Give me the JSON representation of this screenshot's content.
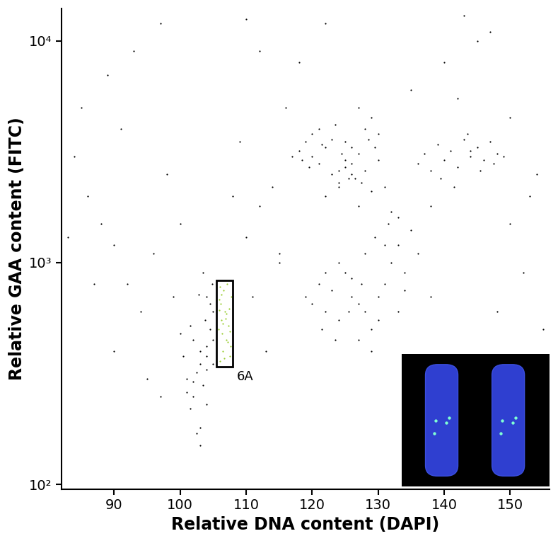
{
  "chart_data": {
    "type": "scatter",
    "x_label": "Relative DNA content (DAPI)",
    "y_label": "Relative GAA content (FITC)",
    "log": "y",
    "xlim": [
      82,
      156
    ],
    "ylim": [
      95,
      14000
    ],
    "xticks": [
      90,
      100,
      110,
      120,
      130,
      140,
      150
    ],
    "yticks": [
      {
        "value": 100,
        "label": "10²"
      },
      {
        "value": 1000,
        "label": "10³"
      },
      {
        "value": 10000,
        "label": "10⁴"
      }
    ],
    "gate": {
      "label": "6A",
      "x": [
        105.5,
        108
      ],
      "y": [
        340,
        830
      ]
    },
    "series": [
      {
        "color": "#000000",
        "marker": "point",
        "x": [
          101,
          102,
          103,
          104,
          104.5,
          105,
          103.5,
          102.5,
          101.5,
          100.5,
          104,
          104.8,
          103,
          102,
          104,
          103.8,
          101,
          103,
          105,
          102.5,
          104.5,
          103.5,
          100,
          102,
          104,
          102.8,
          103,
          101.5,
          105,
          104
        ],
        "y": [
          300,
          250,
          350,
          420,
          500,
          600,
          280,
          320,
          220,
          380,
          700,
          800,
          180,
          450,
          330,
          550,
          260,
          400,
          350,
          170,
          650,
          900,
          480,
          290,
          230,
          720,
          150,
          520,
          450,
          380
        ]
      },
      {
        "color": "#000000",
        "marker": "point",
        "x": [
          118,
          119,
          120,
          121,
          122,
          123,
          124,
          125,
          126,
          127,
          128,
          129,
          130,
          131,
          117,
          119.5,
          121.5,
          123.5,
          125.5,
          127.5,
          129.5,
          122,
          124,
          126,
          128,
          120,
          125,
          127,
          130,
          124.5,
          126.5,
          128.5,
          118.5,
          121,
          123,
          125,
          127,
          129,
          126,
          124
        ],
        "y": [
          3200,
          3500,
          3000,
          2800,
          3300,
          3600,
          2600,
          2900,
          2500,
          3100,
          4000,
          4500,
          3800,
          2200,
          3000,
          2700,
          3400,
          4200,
          2400,
          2300,
          3300,
          2000,
          2200,
          2800,
          2600,
          3800,
          3500,
          5000,
          2900,
          3100,
          2400,
          3600,
          2900,
          4000,
          2500,
          2700,
          1800,
          2100,
          3300,
          2300
        ]
      },
      {
        "color": "#000000",
        "marker": "point",
        "x": [
          136,
          137,
          138,
          139,
          140,
          141,
          142,
          143,
          144,
          145,
          146,
          147,
          148,
          149,
          139.5,
          141.5,
          143.5,
          145.5,
          147.5,
          144
        ],
        "y": [
          2800,
          3100,
          2600,
          3400,
          2900,
          3200,
          2700,
          3600,
          3000,
          3300,
          2900,
          3500,
          3100,
          3000,
          2400,
          2200,
          3800,
          2600,
          2800,
          3200
        ]
      },
      {
        "color": "#000000",
        "marker": "point",
        "x": [
          119,
          120,
          121,
          122,
          123,
          124,
          125,
          126,
          127,
          128,
          129,
          130,
          131,
          132,
          133,
          134,
          135,
          136,
          121.5,
          123.5,
          125.5,
          127.5,
          129.5,
          131.5,
          124,
          126,
          128,
          130,
          132,
          122,
          127,
          129,
          133,
          131,
          134
        ],
        "y": [
          700,
          650,
          800,
          600,
          750,
          550,
          900,
          700,
          650,
          600,
          500,
          550,
          800,
          1000,
          1200,
          900,
          1400,
          1100,
          500,
          450,
          600,
          800,
          1300,
          1500,
          1000,
          850,
          1100,
          700,
          1700,
          900,
          450,
          400,
          1600,
          1200,
          750
        ]
      },
      {
        "color": "#000000",
        "marker": "point",
        "x": [
          84,
          86,
          88,
          90,
          92,
          94,
          96,
          98,
          85,
          89,
          93,
          97,
          100,
          110,
          112,
          114,
          116,
          90,
          95,
          108,
          111,
          113,
          115,
          135,
          140,
          145,
          150,
          152,
          154,
          155,
          150,
          147,
          143,
          138,
          133,
          112,
          109,
          97,
          87,
          83,
          91,
          99,
          118,
          122,
          138,
          142,
          148,
          153,
          110,
          115
        ],
        "y": [
          3000,
          2000,
          1500,
          1200,
          800,
          600,
          1100,
          2500,
          5000,
          7000,
          9000,
          12000,
          1500,
          1300,
          1800,
          2200,
          5000,
          400,
          300,
          2000,
          700,
          400,
          1000,
          6000,
          8000,
          10000,
          1500,
          900,
          2500,
          500,
          4500,
          11000,
          13000,
          1800,
          600,
          9000,
          3500,
          250,
          800,
          1300,
          4000,
          700,
          8000,
          12000,
          700,
          5500,
          600,
          2000,
          12500,
          1100
        ]
      },
      {
        "color": "#9ACD32",
        "marker": "point",
        "x": [
          106,
          106.5,
          107,
          107.5,
          105.8,
          106.2,
          106.8,
          107.3,
          107.7,
          106.1,
          106.6,
          107.1,
          107.6,
          105.9,
          106.4,
          106.9,
          107.4,
          106,
          106.7,
          107.2,
          106.3,
          107,
          107.5,
          106.5,
          105.9
        ],
        "y": [
          360,
          400,
          450,
          380,
          500,
          550,
          600,
          520,
          700,
          650,
          750,
          800,
          420,
          680,
          480,
          560,
          620,
          780,
          370,
          440,
          720,
          590,
          490,
          530,
          610
        ]
      }
    ]
  }
}
